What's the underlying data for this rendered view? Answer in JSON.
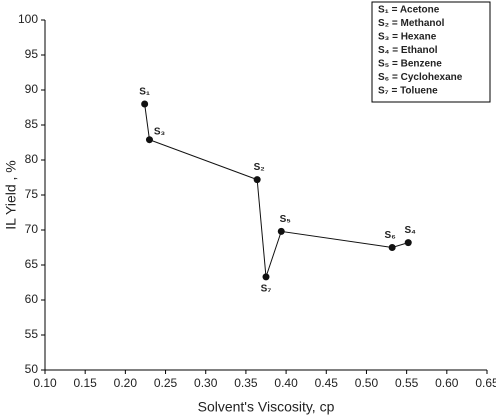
{
  "chart_data": {
    "type": "line",
    "x_label": "Solvent's Viscosity, cp",
    "y_label": "IL Yield , %",
    "x": [
      0.224,
      0.23,
      0.364,
      0.375,
      0.394,
      0.532,
      0.552
    ],
    "series": [
      {
        "values": [
          88,
          82.9,
          77.2,
          63.3,
          69.8,
          67.5,
          68.2
        ],
        "color": "#111111"
      }
    ],
    "point_labels": [
      "S₁",
      "S₃",
      "S₂",
      "S₇",
      "S₅",
      "S₆",
      "S₄"
    ],
    "legend_entries": [
      "S₁ = Acetone",
      "S₂ = Methanol",
      "S₃ = Hexane",
      "S₄ = Ethanol",
      "S₅ = Benzene",
      "S₆ = Cyclohexane",
      "S₇ = Toluene"
    ],
    "xlim": [
      0.1,
      0.65
    ],
    "ylim": [
      50,
      100
    ],
    "xticks": [
      {
        "value": 0.1,
        "label": "0.10"
      },
      {
        "value": 0.15,
        "label": "0.15"
      },
      {
        "value": 0.2,
        "label": "0.20"
      },
      {
        "value": 0.25,
        "label": "0.25"
      },
      {
        "value": 0.3,
        "label": "0.30"
      },
      {
        "value": 0.35,
        "label": "0.35"
      },
      {
        "value": 0.4,
        "label": "0.40"
      },
      {
        "value": 0.45,
        "label": "0.45"
      },
      {
        "value": 0.5,
        "label": "0.50"
      },
      {
        "value": 0.55,
        "label": "0.55"
      },
      {
        "value": 0.6,
        "label": "0.60"
      },
      {
        "value": 0.65,
        "label": "0.65"
      }
    ],
    "yticks": [
      50,
      55,
      60,
      65,
      70,
      75,
      80,
      85,
      90,
      95,
      100
    ],
    "grid": false
  }
}
